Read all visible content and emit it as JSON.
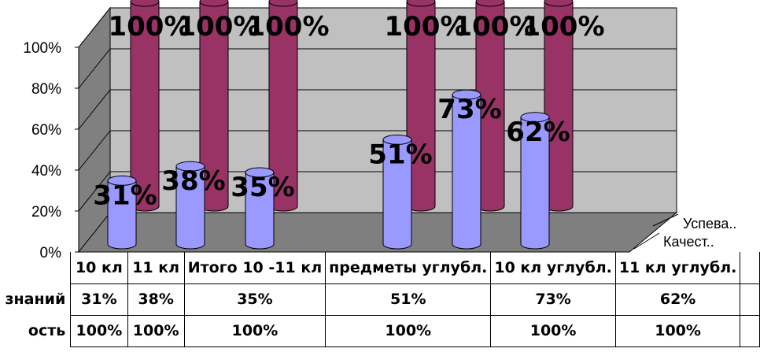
{
  "chart_data": {
    "type": "bar",
    "categories": [
      "10 кл",
      "11 кл",
      "Итого 10 -11 кл",
      "предметы углубл.",
      "10 кл углубл.",
      "11 кл углубл."
    ],
    "series": [
      {
        "name": "Качест..",
        "row_label": "знаний",
        "values": [
          31,
          38,
          35,
          51,
          73,
          62
        ],
        "labels": [
          "31%",
          "38%",
          "35%",
          "51%",
          "73%",
          "62%"
        ],
        "color": "#9999ff"
      },
      {
        "name": "Успева..",
        "row_label": "ость",
        "values": [
          100,
          100,
          100,
          100,
          100,
          100
        ],
        "labels": [
          "100%",
          "100%",
          "100%",
          "100%",
          "100%",
          "100%"
        ],
        "color": "#993366"
      }
    ],
    "y_ticks": [
      "0%",
      "20%",
      "40%",
      "60%",
      "80%",
      "100%"
    ],
    "ylim": [
      0,
      100
    ],
    "grid": true,
    "legend_position": "right"
  }
}
